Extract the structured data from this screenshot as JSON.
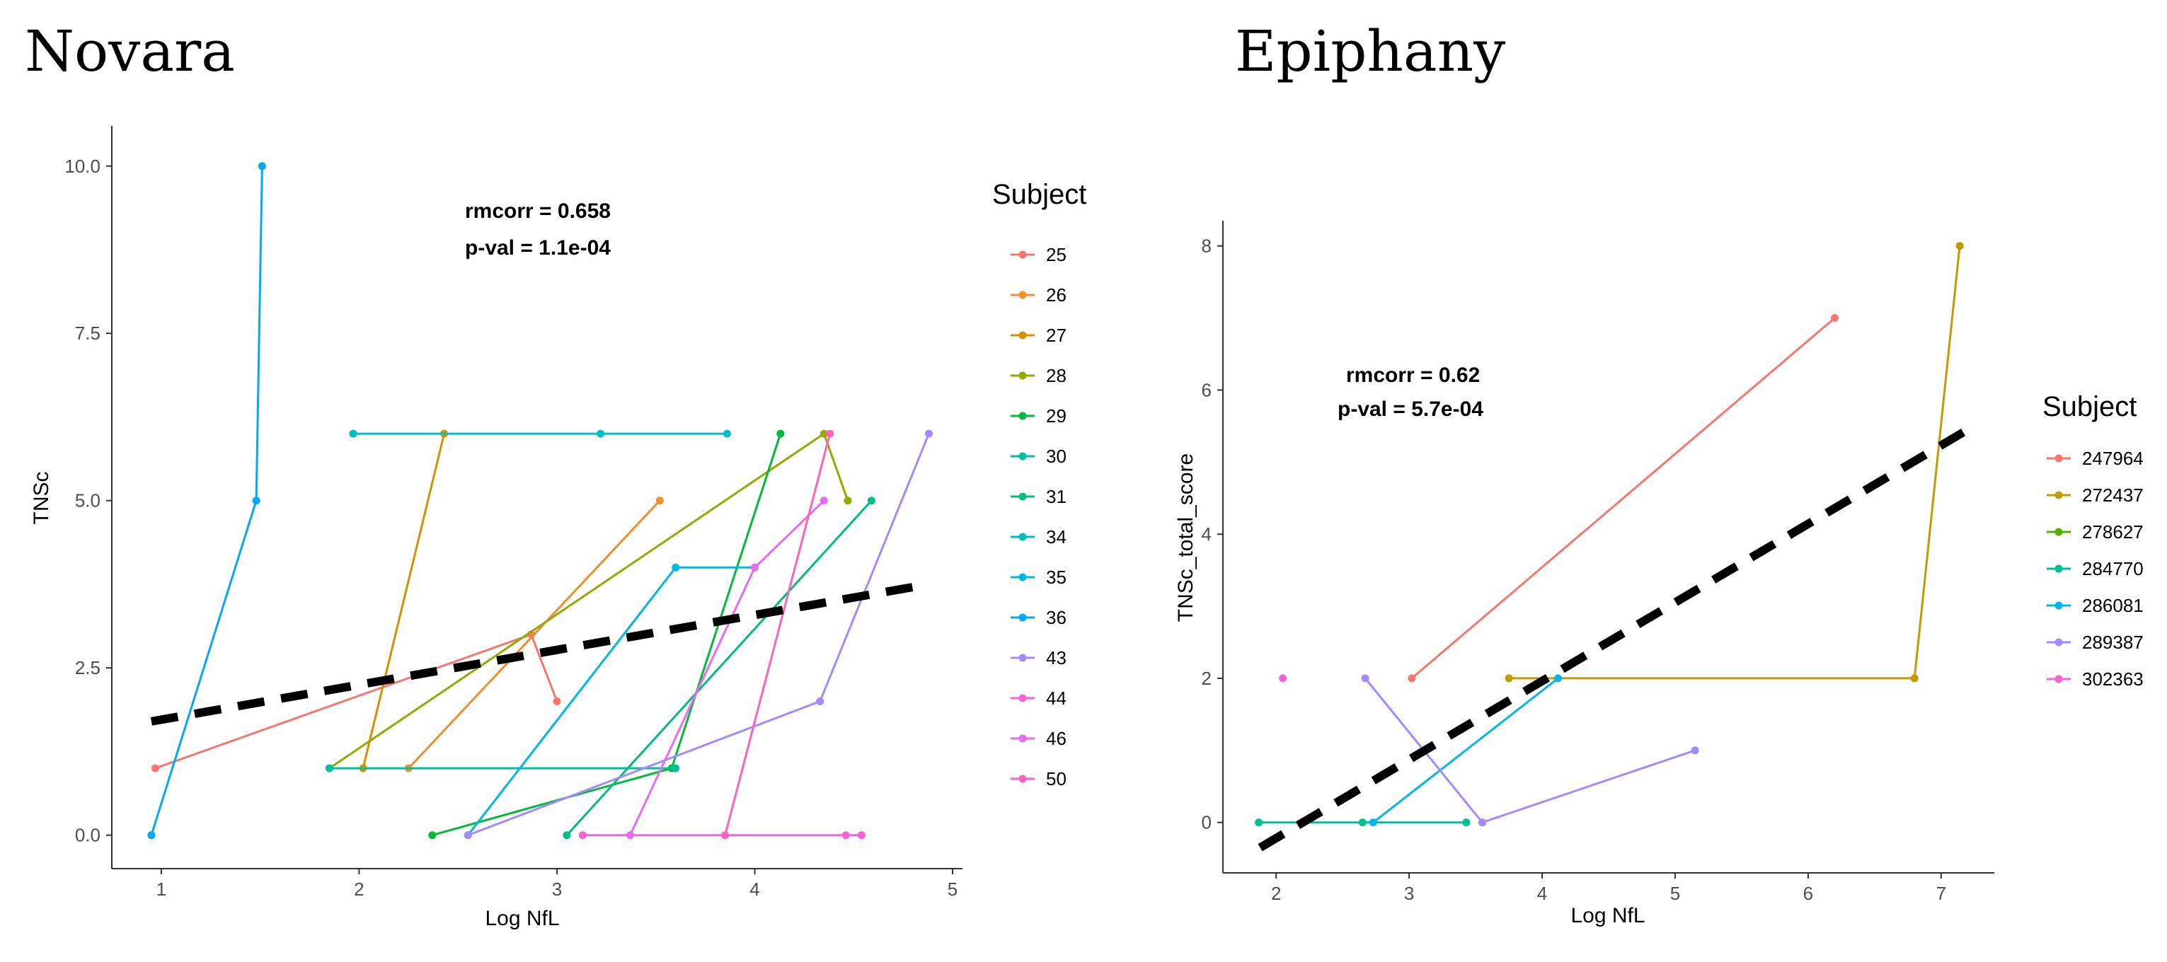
{
  "chart_data": [
    {
      "type": "line",
      "title": "Novara",
      "xlabel": "Log NfL",
      "ylabel": "TNSc",
      "xlim": [
        0.75,
        5.05
      ],
      "ylim": [
        -0.5,
        10.6
      ],
      "xticks": [
        1,
        2,
        3,
        4,
        5
      ],
      "yticks": [
        0,
        2.5,
        5,
        7.5,
        10
      ],
      "ytick_labels": [
        "0.0",
        "2.5",
        "5.0",
        "7.5",
        "10.0"
      ],
      "grid": false,
      "legend_title": "Subject",
      "legend_position": "right",
      "annotation": [
        "rmcorr = 0.658",
        "p-val = 1.1e-04"
      ],
      "regression_line": {
        "x": [
          0.95,
          4.88
        ],
        "y": [
          1.7,
          3.75
        ],
        "style": "dashed",
        "color": "#000000"
      },
      "series": [
        {
          "name": "25",
          "color": "#F8766D",
          "x": [
            0.97,
            2.87,
            3.0
          ],
          "y": [
            1.0,
            3.0,
            2.0
          ]
        },
        {
          "name": "26",
          "color": "#F28E2B",
          "x": [
            2.25,
            3.52
          ],
          "y": [
            1.0,
            5.0
          ]
        },
        {
          "name": "27",
          "color": "#D39200",
          "x": [
            2.02,
            2.43
          ],
          "y": [
            1.0,
            6.0
          ]
        },
        {
          "name": "28",
          "color": "#93AA00",
          "x": [
            1.85,
            4.35,
            4.47
          ],
          "y": [
            1.0,
            6.0,
            5.0
          ]
        },
        {
          "name": "29",
          "color": "#00BA38",
          "x": [
            2.37,
            3.58,
            4.13
          ],
          "y": [
            0.0,
            1.0,
            6.0
          ]
        },
        {
          "name": "30",
          "color": "#00C19F",
          "x": [
            1.85,
            3.6
          ],
          "y": [
            1.0,
            1.0
          ]
        },
        {
          "name": "31",
          "color": "#00BF7D",
          "x": [
            3.05,
            4.59
          ],
          "y": [
            0.0,
            5.0
          ]
        },
        {
          "name": "34",
          "color": "#00BFC4",
          "x": [
            1.97,
            3.22,
            3.86
          ],
          "y": [
            6.0,
            6.0,
            6.0
          ]
        },
        {
          "name": "35",
          "color": "#00B9E3",
          "x": [
            2.55,
            3.6,
            4.0
          ],
          "y": [
            0.0,
            4.0,
            4.0
          ]
        },
        {
          "name": "36",
          "color": "#00A9FF",
          "x": [
            0.95,
            1.48,
            1.51
          ],
          "y": [
            0.0,
            5.0,
            10.0
          ]
        },
        {
          "name": "43",
          "color": "#A58AFF",
          "x": [
            2.55,
            4.33,
            4.88
          ],
          "y": [
            0.0,
            2.0,
            6.0
          ]
        },
        {
          "name": "44",
          "color": "#FB61D7",
          "x": [
            3.13,
            4.46,
            4.54
          ],
          "y": [
            0.0,
            0.0,
            0.0
          ]
        },
        {
          "name": "46",
          "color": "#E76BF3",
          "x": [
            3.37,
            4.0,
            4.35
          ],
          "y": [
            0.0,
            4.0,
            5.0
          ]
        },
        {
          "name": "50",
          "color": "#FF62BC",
          "x": [
            3.85,
            4.38
          ],
          "y": [
            0.0,
            6.0
          ]
        }
      ]
    },
    {
      "type": "line",
      "title": "Epiphany",
      "xlabel": "Log NfL",
      "ylabel": "TNSc_total_score",
      "xlim": [
        1.6,
        7.4
      ],
      "ylim": [
        -0.7,
        8.35
      ],
      "xticks": [
        2,
        3,
        4,
        5,
        6,
        7
      ],
      "yticks": [
        0,
        2,
        4,
        6,
        8
      ],
      "ytick_labels": [
        "0",
        "2",
        "4",
        "6",
        "8"
      ],
      "grid": false,
      "legend_title": "Subject",
      "legend_position": "right",
      "annotation": [
        "rmcorr = 0.62",
        "p-val = 5.7e-04"
      ],
      "regression_line": {
        "x": [
          1.88,
          7.2
        ],
        "y": [
          -0.35,
          5.45
        ],
        "style": "dashed",
        "color": "#000000"
      },
      "series": [
        {
          "name": "247964",
          "color": "#F8766D",
          "x": [
            3.02,
            6.2
          ],
          "y": [
            2.0,
            7.0
          ]
        },
        {
          "name": "272437",
          "color": "#C49A00",
          "x": [
            3.75,
            6.8,
            7.14
          ],
          "y": [
            2.0,
            2.0,
            8.0
          ]
        },
        {
          "name": "278627",
          "color": "#53B400",
          "x": [
            3.55
          ],
          "y": [
            0.0
          ]
        },
        {
          "name": "284770",
          "color": "#00C094",
          "x": [
            1.87,
            2.65,
            3.43
          ],
          "y": [
            0.0,
            0.0,
            0.0
          ]
        },
        {
          "name": "286081",
          "color": "#00B6EB",
          "x": [
            2.73,
            4.12
          ],
          "y": [
            0.0,
            2.0
          ]
        },
        {
          "name": "289387",
          "color": "#A58AFF",
          "x": [
            2.67,
            3.55,
            5.15
          ],
          "y": [
            2.0,
            0.0,
            1.0
          ]
        },
        {
          "name": "302363",
          "color": "#FB61D7",
          "x": [
            2.05
          ],
          "y": [
            2.0
          ]
        }
      ]
    }
  ]
}
